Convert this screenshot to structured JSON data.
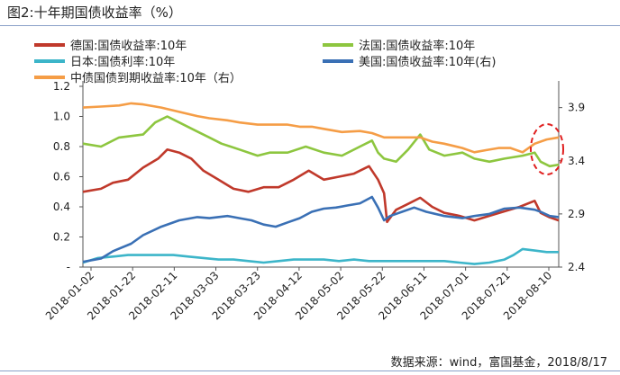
{
  "figure_title": "图2:十年期国债收益率（%）",
  "source_note": "数据来源：wind，富国基金，2018/8/17",
  "chart_data": {
    "type": "line",
    "title": "图2:十年期国债收益率（%）",
    "x_labels": [
      "2018-01-02",
      "2018-01-22",
      "2018-02-11",
      "2018-03-03",
      "2018-03-23",
      "2018-04-12",
      "2018-05-02",
      "2018-05-22",
      "2018-06-11",
      "2018-07-01",
      "2018-07-21",
      "2018-08-10"
    ],
    "x_range": [
      "2018-01-02",
      "2018-08-17"
    ],
    "y_left": {
      "range": [
        0,
        1.2
      ],
      "ticks": [
        0,
        0.2,
        0.4,
        0.6,
        0.8,
        1.0,
        1.2
      ],
      "tick_labels": [
        "-",
        "0.2",
        "0.4",
        "0.6",
        "0.8",
        "1.0",
        "1.2"
      ]
    },
    "y_right": {
      "range": [
        2.4,
        4.1
      ],
      "ticks": [
        2.4,
        2.9,
        3.4,
        3.9
      ],
      "tick_labels": [
        "2.4",
        "2.9",
        "3.4",
        "3.9"
      ]
    },
    "legend_position": "top",
    "annotation": "dashed red ellipse highlighting the latest values of the French and China series",
    "series": [
      {
        "name": "德国:国债收益率:10年",
        "axis": "left",
        "color": "#c0392b",
        "points": [
          [
            0,
            0.5
          ],
          [
            6,
            0.52
          ],
          [
            10,
            0.56
          ],
          [
            15,
            0.58
          ],
          [
            20,
            0.66
          ],
          [
            25,
            0.72
          ],
          [
            28,
            0.78
          ],
          [
            32,
            0.76
          ],
          [
            36,
            0.72
          ],
          [
            40,
            0.64
          ],
          [
            45,
            0.58
          ],
          [
            50,
            0.52
          ],
          [
            55,
            0.5
          ],
          [
            60,
            0.53
          ],
          [
            65,
            0.53
          ],
          [
            70,
            0.58
          ],
          [
            75,
            0.64
          ],
          [
            80,
            0.58
          ],
          [
            85,
            0.6
          ],
          [
            90,
            0.62
          ],
          [
            95,
            0.67
          ],
          [
            98,
            0.58
          ],
          [
            100,
            0.49
          ],
          [
            101,
            0.3
          ],
          [
            104,
            0.38
          ],
          [
            108,
            0.42
          ],
          [
            112,
            0.46
          ],
          [
            116,
            0.4
          ],
          [
            120,
            0.36
          ],
          [
            125,
            0.34
          ],
          [
            130,
            0.31
          ],
          [
            135,
            0.34
          ],
          [
            140,
            0.37
          ],
          [
            145,
            0.4
          ],
          [
            150,
            0.44
          ],
          [
            152,
            0.36
          ],
          [
            155,
            0.33
          ],
          [
            158,
            0.31
          ]
        ]
      },
      {
        "name": "法国:国债收益率:10年",
        "axis": "left",
        "color": "#8dc63f",
        "points": [
          [
            0,
            0.82
          ],
          [
            6,
            0.8
          ],
          [
            12,
            0.86
          ],
          [
            20,
            0.88
          ],
          [
            24,
            0.96
          ],
          [
            28,
            1.0
          ],
          [
            32,
            0.96
          ],
          [
            38,
            0.9
          ],
          [
            42,
            0.86
          ],
          [
            46,
            0.82
          ],
          [
            52,
            0.78
          ],
          [
            58,
            0.74
          ],
          [
            62,
            0.76
          ],
          [
            68,
            0.76
          ],
          [
            74,
            0.8
          ],
          [
            80,
            0.76
          ],
          [
            86,
            0.74
          ],
          [
            92,
            0.8
          ],
          [
            96,
            0.84
          ],
          [
            98,
            0.76
          ],
          [
            100,
            0.72
          ],
          [
            104,
            0.7
          ],
          [
            108,
            0.78
          ],
          [
            112,
            0.88
          ],
          [
            115,
            0.78
          ],
          [
            120,
            0.74
          ],
          [
            126,
            0.76
          ],
          [
            130,
            0.72
          ],
          [
            135,
            0.7
          ],
          [
            140,
            0.72
          ],
          [
            146,
            0.74
          ],
          [
            150,
            0.76
          ],
          [
            152,
            0.7
          ],
          [
            155,
            0.67
          ],
          [
            158,
            0.68
          ]
        ]
      },
      {
        "name": "日本:国债利率:10年",
        "axis": "left",
        "color": "#3cb5c9",
        "points": [
          [
            0,
            0.03
          ],
          [
            5,
            0.06
          ],
          [
            10,
            0.07
          ],
          [
            15,
            0.08
          ],
          [
            20,
            0.08
          ],
          [
            25,
            0.08
          ],
          [
            30,
            0.08
          ],
          [
            35,
            0.07
          ],
          [
            40,
            0.06
          ],
          [
            45,
            0.05
          ],
          [
            50,
            0.05
          ],
          [
            55,
            0.04
          ],
          [
            60,
            0.03
          ],
          [
            65,
            0.04
          ],
          [
            70,
            0.05
          ],
          [
            75,
            0.05
          ],
          [
            80,
            0.05
          ],
          [
            85,
            0.04
          ],
          [
            90,
            0.05
          ],
          [
            95,
            0.04
          ],
          [
            100,
            0.04
          ],
          [
            105,
            0.04
          ],
          [
            110,
            0.04
          ],
          [
            115,
            0.04
          ],
          [
            120,
            0.04
          ],
          [
            125,
            0.03
          ],
          [
            130,
            0.02
          ],
          [
            135,
            0.03
          ],
          [
            140,
            0.05
          ],
          [
            143,
            0.08
          ],
          [
            146,
            0.12
          ],
          [
            150,
            0.11
          ],
          [
            154,
            0.1
          ],
          [
            158,
            0.1
          ]
        ]
      },
      {
        "name": "美国:国债收益率:10年(右)",
        "axis": "right",
        "color": "#3a70b5",
        "points": [
          [
            0,
            2.45
          ],
          [
            6,
            2.48
          ],
          [
            10,
            2.55
          ],
          [
            16,
            2.62
          ],
          [
            20,
            2.7
          ],
          [
            26,
            2.78
          ],
          [
            32,
            2.84
          ],
          [
            38,
            2.87
          ],
          [
            42,
            2.86
          ],
          [
            48,
            2.88
          ],
          [
            52,
            2.86
          ],
          [
            56,
            2.84
          ],
          [
            60,
            2.8
          ],
          [
            64,
            2.78
          ],
          [
            68,
            2.82
          ],
          [
            72,
            2.86
          ],
          [
            76,
            2.92
          ],
          [
            80,
            2.95
          ],
          [
            84,
            2.96
          ],
          [
            88,
            2.98
          ],
          [
            92,
            3.0
          ],
          [
            96,
            3.06
          ],
          [
            98,
            2.96
          ],
          [
            100,
            2.84
          ],
          [
            102,
            2.88
          ],
          [
            106,
            2.92
          ],
          [
            110,
            2.96
          ],
          [
            114,
            2.92
          ],
          [
            120,
            2.88
          ],
          [
            126,
            2.86
          ],
          [
            130,
            2.88
          ],
          [
            135,
            2.9
          ],
          [
            140,
            2.95
          ],
          [
            145,
            2.96
          ],
          [
            150,
            2.94
          ],
          [
            152,
            2.92
          ],
          [
            155,
            2.88
          ],
          [
            158,
            2.87
          ]
        ]
      },
      {
        "name": "中债国债到期收益率:10年（右）",
        "axis": "right",
        "color": "#f59d46",
        "points": [
          [
            0,
            3.9
          ],
          [
            6,
            3.91
          ],
          [
            12,
            3.92
          ],
          [
            16,
            3.94
          ],
          [
            20,
            3.93
          ],
          [
            26,
            3.9
          ],
          [
            32,
            3.86
          ],
          [
            38,
            3.82
          ],
          [
            42,
            3.8
          ],
          [
            48,
            3.78
          ],
          [
            52,
            3.76
          ],
          [
            58,
            3.74
          ],
          [
            62,
            3.74
          ],
          [
            68,
            3.74
          ],
          [
            72,
            3.72
          ],
          [
            76,
            3.72
          ],
          [
            80,
            3.7
          ],
          [
            86,
            3.67
          ],
          [
            92,
            3.68
          ],
          [
            96,
            3.66
          ],
          [
            100,
            3.62
          ],
          [
            104,
            3.62
          ],
          [
            108,
            3.62
          ],
          [
            112,
            3.62
          ],
          [
            116,
            3.58
          ],
          [
            120,
            3.56
          ],
          [
            126,
            3.52
          ],
          [
            130,
            3.48
          ],
          [
            134,
            3.5
          ],
          [
            138,
            3.52
          ],
          [
            142,
            3.52
          ],
          [
            146,
            3.48
          ],
          [
            150,
            3.56
          ],
          [
            154,
            3.6
          ],
          [
            158,
            3.62
          ]
        ]
      }
    ]
  }
}
